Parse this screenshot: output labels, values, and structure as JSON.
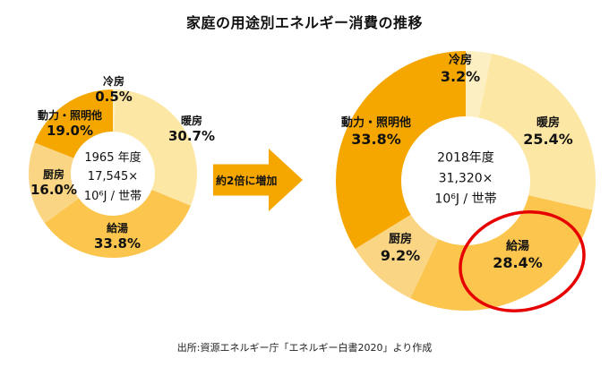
{
  "title": "家庭の用途別エネルギー消費の推移",
  "arrow": {
    "label": "約2倍に増加",
    "color": "#F5A700"
  },
  "source": "出所:資源エネルギー庁「エネルギー白書2020」より作成",
  "highlight": {
    "color": "#E60000",
    "target": "給湯 28.4% (2018年度)"
  },
  "chart_data": [
    {
      "type": "pie",
      "subtype": "donut",
      "title": "1965年度",
      "center_lines": [
        "1965 年度",
        "17,545×",
        "10⁶J / 世帯"
      ],
      "unit": "%",
      "start_angle_deg": 0,
      "direction": "clockwise",
      "segments": [
        {
          "label": "冷房",
          "value": 0.5,
          "pct": "0.5%",
          "color": "#FCEFC2"
        },
        {
          "label": "暖房",
          "value": 30.7,
          "pct": "30.7%",
          "color": "#FDE7A5"
        },
        {
          "label": "給湯",
          "value": 33.8,
          "pct": "33.8%",
          "color": "#FBC54E"
        },
        {
          "label": "厨房",
          "value": 16.0,
          "pct": "16.0%",
          "color": "#FAD584"
        },
        {
          "label": "動力・照明他",
          "value": 19.0,
          "pct": "19.0%",
          "color": "#F5A700"
        }
      ]
    },
    {
      "type": "pie",
      "subtype": "donut",
      "title": "2018年度",
      "center_lines": [
        "2018年度",
        "31,320×",
        "10⁶J / 世帯"
      ],
      "unit": "%",
      "start_angle_deg": 0,
      "direction": "clockwise",
      "segments": [
        {
          "label": "冷房",
          "value": 3.2,
          "pct": "3.2%",
          "color": "#FCEFC2"
        },
        {
          "label": "暖房",
          "value": 25.4,
          "pct": "25.4%",
          "color": "#FDE7A5"
        },
        {
          "label": "給湯",
          "value": 28.4,
          "pct": "28.4%",
          "color": "#FBC54E"
        },
        {
          "label": "厨房",
          "value": 9.2,
          "pct": "9.2%",
          "color": "#FAD584"
        },
        {
          "label": "動力・照明他",
          "value": 33.8,
          "pct": "33.8%",
          "color": "#F5A700"
        }
      ]
    }
  ]
}
